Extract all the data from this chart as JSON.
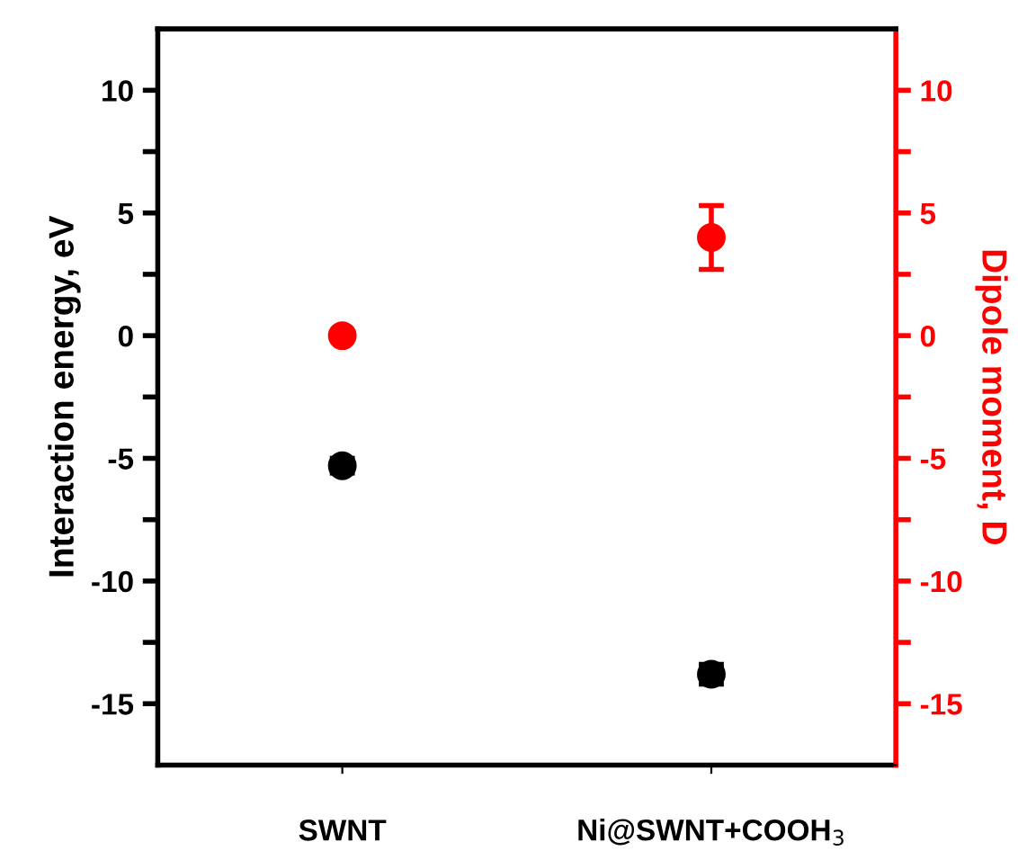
{
  "chart_data": {
    "type": "scatter",
    "ylabel": "Interaction energy, eV",
    "y2label": "Dipole moment, D",
    "categories": [
      "SWNT",
      "Ni@SWNT+COOH$_{3}$"
    ],
    "series": [
      {
        "color": "#000000",
        "values": [
          -5.3,
          -13.8
        ],
        "errors": [
          0.3,
          0.4
        ]
      },
      {
        "color": "#ff0000",
        "values": [
          0,
          4.0
        ],
        "errors": [
          null,
          1.3
        ],
        "axis": "y2"
      }
    ],
    "ylim": [
      -17.5,
      12.5
    ],
    "yticks": [
      -15,
      {
        "value": -12.5,
        "label": null
      },
      -10,
      {
        "value": -7.5,
        "label": null
      },
      -5,
      {
        "value": -2.5,
        "label": null
      },
      0,
      {
        "value": 2.5,
        "label": null
      },
      5,
      {
        "value": 7.5,
        "label": null
      },
      10
    ],
    "y2lim": [
      -17.5,
      12.5
    ],
    "y2ticks": [
      -15,
      {
        "value": -12.5,
        "label": null
      },
      -10,
      {
        "value": -7.5,
        "label": null
      },
      -5,
      {
        "value": -2.5,
        "label": null
      },
      0,
      {
        "value": 2.5,
        "label": null
      },
      5,
      {
        "value": 7.5,
        "label": null
      },
      10
    ],
    "marker": "circle",
    "grid": false,
    "legend": false
  }
}
